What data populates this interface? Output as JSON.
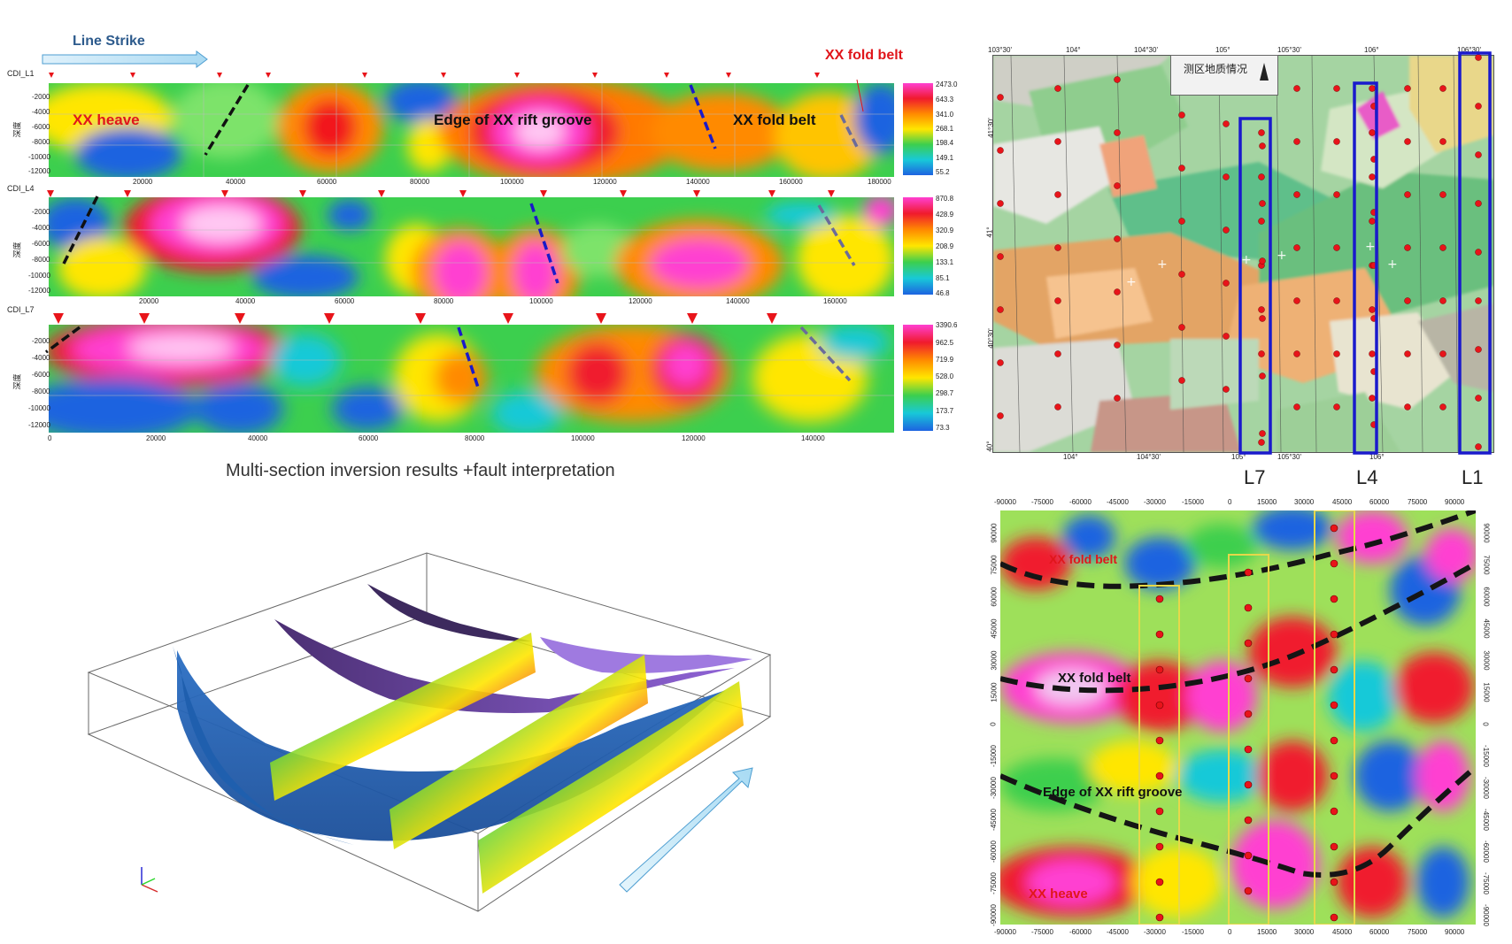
{
  "top": {
    "line_strike": "Line Strike",
    "fold_belt_top": "XX fold belt",
    "caption": "Multi-section inversion results +fault interpretation"
  },
  "sections": [
    {
      "id": "CDI_L1",
      "depth_label": "深度",
      "labels": [
        "XX heave",
        "Edge of XX rift groove",
        "XX fold belt"
      ],
      "colorbar": [
        "2473.0",
        "643.3",
        "341.0",
        "268.1",
        "198.4",
        "149.1",
        "55.2"
      ],
      "y_ticks": [
        "-2000",
        "-4000",
        "-6000",
        "-8000",
        "-10000",
        "-12000"
      ],
      "x_ticks": [
        "20000",
        "40000",
        "60000",
        "80000",
        "100000",
        "120000",
        "140000",
        "160000",
        "180000"
      ]
    },
    {
      "id": "CDI_L4",
      "depth_label": "深度",
      "colorbar": [
        "870.8",
        "428.9",
        "320.9",
        "208.9",
        "133.1",
        "85.1",
        "46.8"
      ],
      "y_ticks": [
        "-2000",
        "-4000",
        "-6000",
        "-8000",
        "-10000",
        "-12000"
      ],
      "x_ticks": [
        "20000",
        "40000",
        "60000",
        "80000",
        "100000",
        "120000",
        "140000",
        "160000"
      ]
    },
    {
      "id": "CDI_L7",
      "depth_label": "深度",
      "colorbar": [
        "3390.6",
        "962.5",
        "719.9",
        "528.0",
        "298.7",
        "173.7",
        "73.3"
      ],
      "y_ticks": [
        "-2000",
        "-4000",
        "-6000",
        "-8000",
        "-10000",
        "-12000"
      ],
      "x_ticks": [
        "0",
        "20000",
        "40000",
        "60000",
        "80000",
        "100000",
        "120000",
        "140000"
      ]
    }
  ],
  "map": {
    "title": "测区地质情况",
    "top_ticks": [
      "103°30'",
      "104°",
      "104°30'",
      "105°",
      "105°30'",
      "106°",
      "106°30'"
    ],
    "bottom_ticks": [
      "104°",
      "104°30'",
      "105°",
      "105°30'",
      "106°"
    ],
    "left_ticks": [
      "41°30'",
      "41°",
      "40°30'",
      "40°"
    ],
    "lines": [
      "L7",
      "L4",
      "L1"
    ]
  },
  "plan": {
    "labels": [
      "XX fold belt",
      "XX fold belt",
      "Edge of XX rift groove",
      "XX heave"
    ],
    "x_ticks": [
      "-90000",
      "-75000",
      "-60000",
      "-45000",
      "-30000",
      "-15000",
      "0",
      "15000",
      "30000",
      "45000",
      "60000",
      "75000",
      "90000"
    ],
    "y_ticks": [
      "90000",
      "75000",
      "60000",
      "45000",
      "30000",
      "15000",
      "0",
      "-15000",
      "-30000",
      "-45000",
      "-60000",
      "-75000",
      "-90000"
    ]
  },
  "colors": {
    "title_blue": "#1f4e79",
    "red_label": "#e0161b",
    "fault_black": "#111111",
    "fault_blue": "#1a1ac8",
    "fault_gray": "#6b6b9a",
    "survey_box": "#1a1acc",
    "plan_box": "#e6d84a"
  }
}
